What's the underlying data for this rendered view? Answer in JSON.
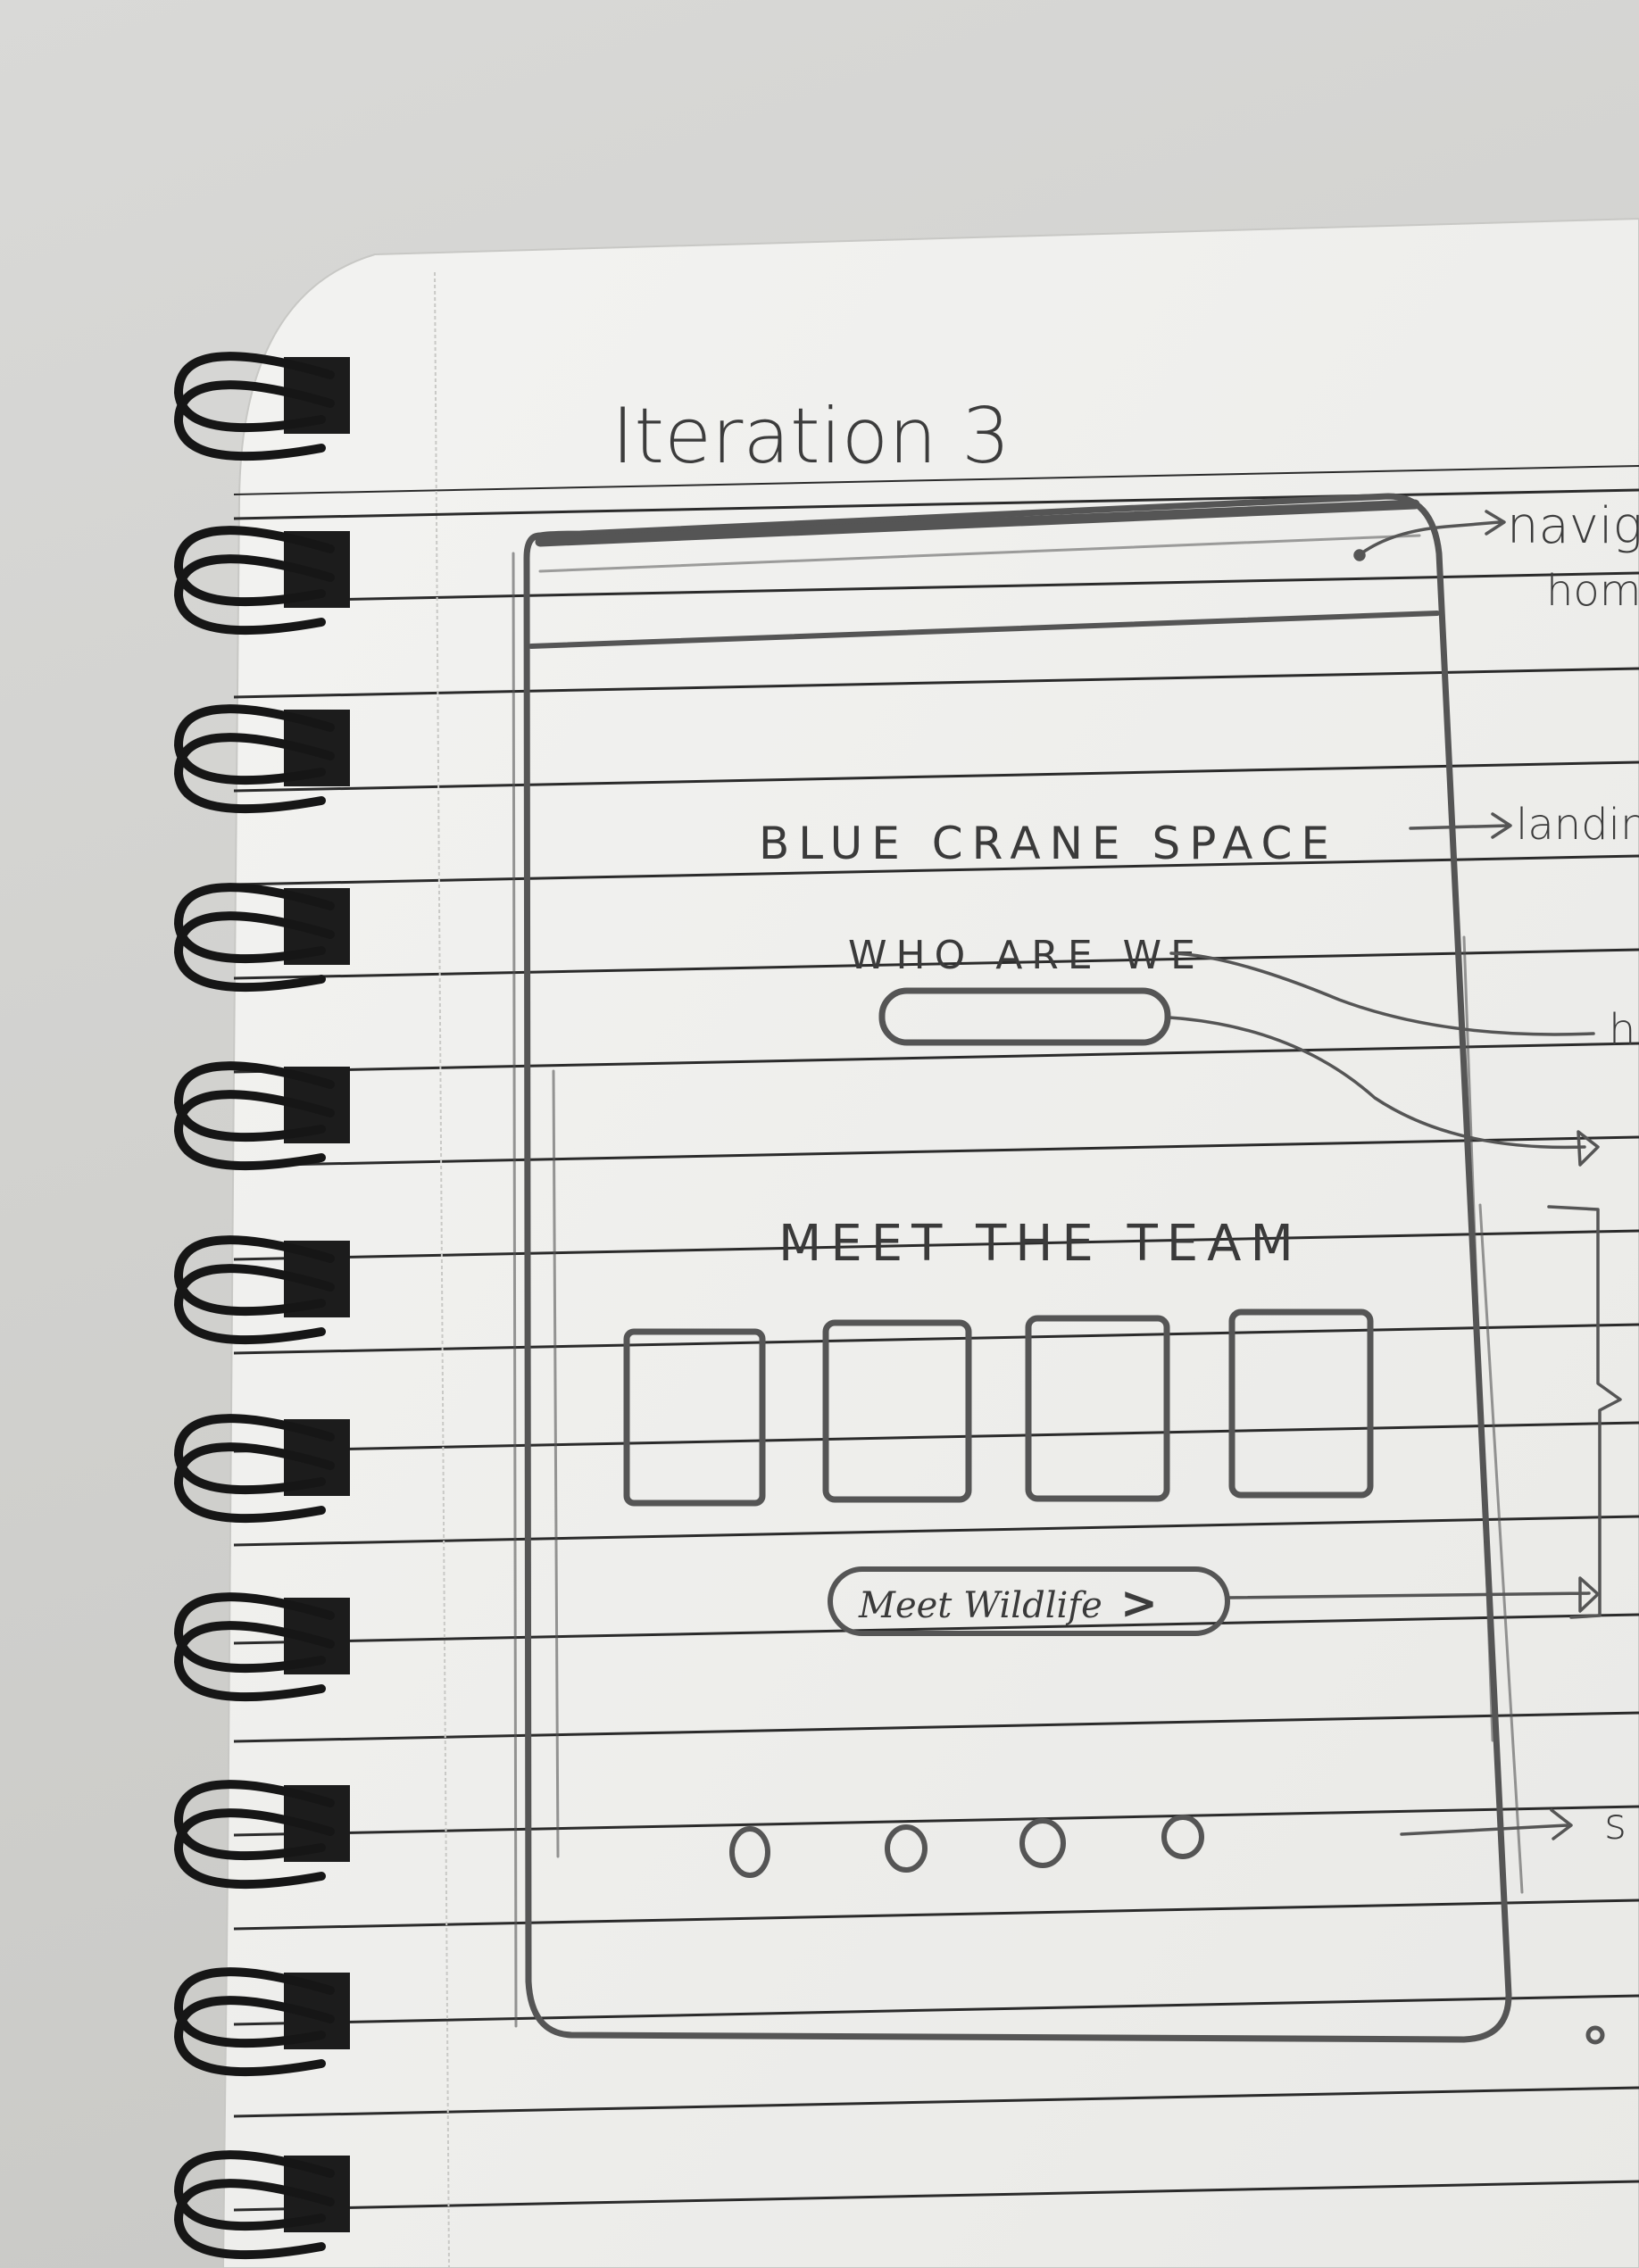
{
  "page": {
    "heading": "Iteration 3"
  },
  "wireframe": {
    "site_title": "BLUE CRANE SPACE",
    "about_heading": "WHO ARE WE",
    "team_heading": "MEET THE TEAM",
    "team_cards": [
      "",
      "",
      "",
      ""
    ],
    "team_button_label": "Meet Wildlife",
    "team_button_chevron": ">",
    "social_icons": [
      "circle-icon",
      "circle-icon",
      "circle-icon",
      "circle-icon"
    ]
  },
  "annotations": {
    "nav": "navig",
    "nav_sub": "hom",
    "landing": "landin",
    "about": "h",
    "section_end": "s"
  }
}
